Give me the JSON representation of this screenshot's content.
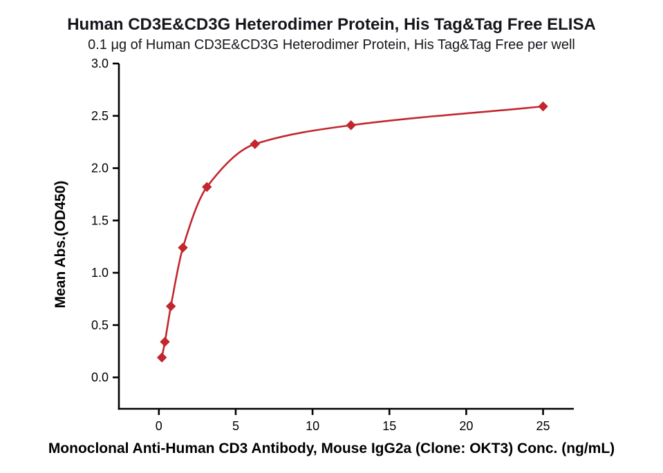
{
  "chart_data": {
    "type": "line",
    "title": "Human CD3E&CD3G Heterodimer Protein, His Tag&Tag Free ELISA",
    "subtitle": "0.1 μg of Human CD3E&CD3G Heterodimer Protein, His Tag&Tag Free per well",
    "xlabel": "Monoclonal Anti-Human CD3 Antibody, Mouse IgG2a (Clone: OKT3) Conc. (ng/mL)",
    "ylabel": "Mean Abs.(OD450)",
    "x": [
      0.195,
      0.391,
      0.781,
      1.563,
      3.125,
      6.25,
      12.5,
      25
    ],
    "y": [
      0.19,
      0.34,
      0.68,
      1.24,
      1.82,
      2.23,
      2.41,
      2.59
    ],
    "x_ticks": [
      0,
      5,
      10,
      15,
      20,
      25
    ],
    "x_tick_labels": [
      "0",
      "5",
      "10",
      "15",
      "20",
      "25"
    ],
    "y_ticks": [
      0.0,
      0.5,
      1.0,
      1.5,
      2.0,
      2.5,
      3.0
    ],
    "y_tick_labels": [
      "0.0",
      "0.5",
      "1.0",
      "1.5",
      "2.0",
      "2.5",
      "3.0"
    ],
    "xlim": [
      -2.6,
      27
    ],
    "ylim": [
      -0.3,
      3.0
    ],
    "marker": "diamond",
    "line_color": "#c1272d",
    "axis_color": "#000000",
    "grid": false,
    "legend_position": "none"
  }
}
